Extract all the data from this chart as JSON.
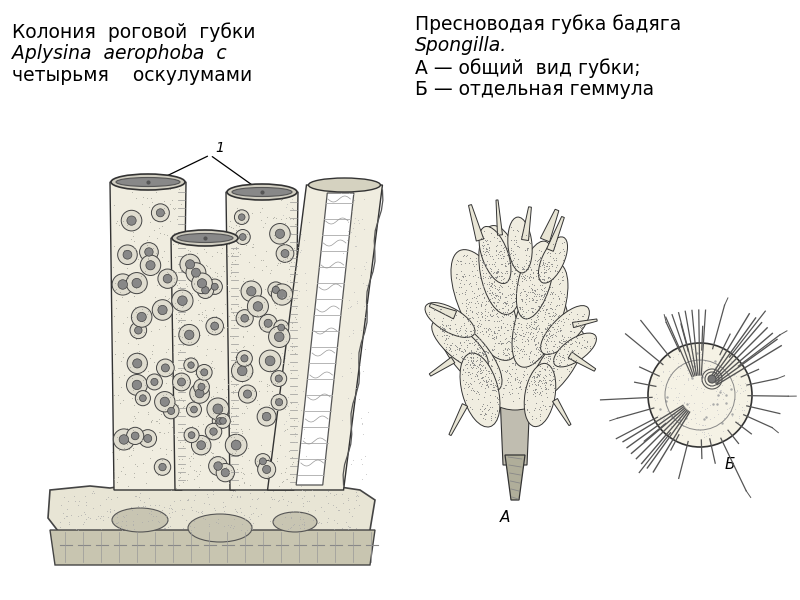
{
  "bg_color": "#ffffff",
  "left_title_line1": "Колония  роговой  губки",
  "left_title_line2": "Aplysina  aerophoba  с",
  "left_title_line3": "четырьмя    оскулумами",
  "right_title_line1": "Пресноводая губка бадяга",
  "right_title_line2": "Spongilla.",
  "right_title_line3": "А — общий  вид губки;",
  "right_title_line4": "Б — отдельная геммула",
  "label_1": "1",
  "label_A": "А",
  "label_B": "Б",
  "fig_width": 8.0,
  "fig_height": 6.0,
  "dpi": 100
}
